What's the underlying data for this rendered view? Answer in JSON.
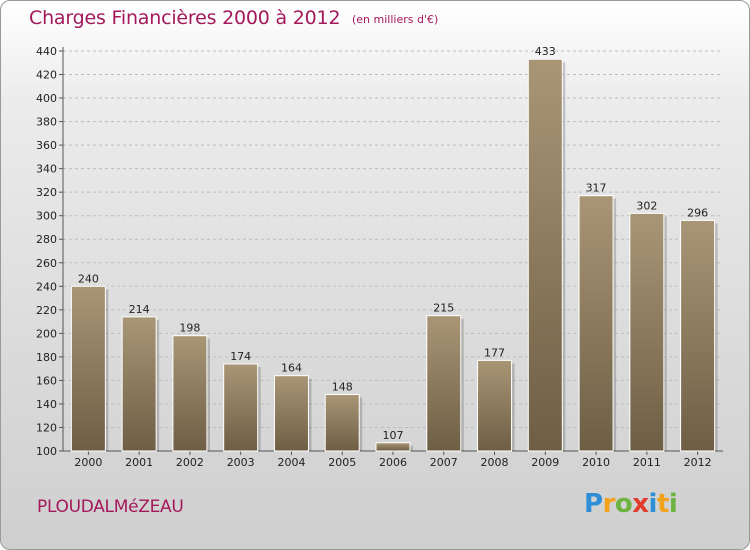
{
  "chart_data": {
    "type": "bar",
    "title": "Charges Financières 2000 à 2012",
    "subtitle": "(en milliers d'€)",
    "categories": [
      "2000",
      "2001",
      "2002",
      "2003",
      "2004",
      "2005",
      "2006",
      "2007",
      "2008",
      "2009",
      "2010",
      "2011",
      "2012"
    ],
    "values": [
      240,
      214,
      198,
      174,
      164,
      148,
      107,
      215,
      177,
      433,
      317,
      302,
      296
    ],
    "ylim": [
      100,
      440
    ],
    "yticks": [
      100,
      120,
      140,
      160,
      180,
      200,
      220,
      240,
      260,
      280,
      300,
      320,
      340,
      360,
      380,
      400,
      420,
      440
    ],
    "xlabel": "",
    "ylabel": "",
    "grid": true,
    "bar_color": "#8d7b5f"
  },
  "footer": {
    "commune": "PLOUDALMéZEAU",
    "logo_letters": [
      {
        "ch": "P",
        "color": "#2f8fd6"
      },
      {
        "ch": "r",
        "color": "#f3a21b"
      },
      {
        "ch": "o",
        "color": "#6db33f"
      },
      {
        "ch": "x",
        "color": "#e23b2a"
      },
      {
        "ch": "i",
        "color": "#2f8fd6"
      },
      {
        "ch": "t",
        "color": "#f3a21b"
      },
      {
        "ch": "i",
        "color": "#6db33f"
      }
    ]
  }
}
